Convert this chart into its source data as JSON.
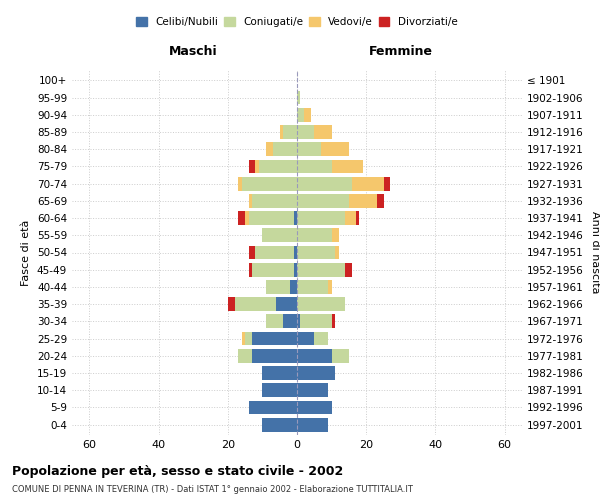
{
  "age_groups": [
    "0-4",
    "5-9",
    "10-14",
    "15-19",
    "20-24",
    "25-29",
    "30-34",
    "35-39",
    "40-44",
    "45-49",
    "50-54",
    "55-59",
    "60-64",
    "65-69",
    "70-74",
    "75-79",
    "80-84",
    "85-89",
    "90-94",
    "95-99",
    "100+"
  ],
  "birth_years": [
    "1997-2001",
    "1992-1996",
    "1987-1991",
    "1982-1986",
    "1977-1981",
    "1972-1976",
    "1967-1971",
    "1962-1966",
    "1957-1961",
    "1952-1956",
    "1947-1951",
    "1942-1946",
    "1937-1941",
    "1932-1936",
    "1927-1931",
    "1922-1926",
    "1917-1921",
    "1912-1916",
    "1907-1911",
    "1902-1906",
    "≤ 1901"
  ],
  "male": {
    "celibi": [
      10,
      14,
      10,
      10,
      13,
      13,
      4,
      6,
      2,
      1,
      1,
      0,
      1,
      0,
      0,
      0,
      0,
      0,
      0,
      0,
      0
    ],
    "coniugati": [
      0,
      0,
      0,
      0,
      4,
      2,
      5,
      12,
      7,
      12,
      11,
      10,
      13,
      13,
      16,
      11,
      7,
      4,
      0,
      0,
      0
    ],
    "vedovi": [
      0,
      0,
      0,
      0,
      0,
      1,
      0,
      0,
      0,
      0,
      0,
      0,
      1,
      1,
      1,
      1,
      2,
      1,
      0,
      0,
      0
    ],
    "divorziati": [
      0,
      0,
      0,
      0,
      0,
      0,
      0,
      2,
      0,
      1,
      2,
      0,
      2,
      0,
      0,
      2,
      0,
      0,
      0,
      0,
      0
    ]
  },
  "female": {
    "nubili": [
      9,
      10,
      9,
      11,
      10,
      5,
      1,
      0,
      0,
      0,
      0,
      0,
      0,
      0,
      0,
      0,
      0,
      0,
      0,
      0,
      0
    ],
    "coniugate": [
      0,
      0,
      0,
      0,
      5,
      4,
      9,
      14,
      9,
      14,
      11,
      10,
      14,
      15,
      16,
      10,
      7,
      5,
      2,
      1,
      0
    ],
    "vedove": [
      0,
      0,
      0,
      0,
      0,
      0,
      0,
      0,
      1,
      0,
      1,
      2,
      3,
      8,
      9,
      9,
      8,
      5,
      2,
      0,
      0
    ],
    "divorziate": [
      0,
      0,
      0,
      0,
      0,
      0,
      1,
      0,
      0,
      2,
      0,
      0,
      1,
      2,
      2,
      0,
      0,
      0,
      0,
      0,
      0
    ]
  },
  "colors": {
    "celibi": "#4472a8",
    "coniugati": "#c5d89d",
    "vedovi": "#f5c76c",
    "divorziati": "#cc2222"
  },
  "title": "Popolazione per età, sesso e stato civile - 2002",
  "subtitle": "COMUNE DI PENNA IN TEVERINA (TR) - Dati ISTAT 1° gennaio 2002 - Elaborazione TUTTITALIA.IT",
  "xlabel_left": "Maschi",
  "xlabel_right": "Femmine",
  "ylabel_left": "Fasce di età",
  "ylabel_right": "Anni di nascita",
  "xlim": 65,
  "bg_color": "#ffffff",
  "grid_color": "#cccccc"
}
